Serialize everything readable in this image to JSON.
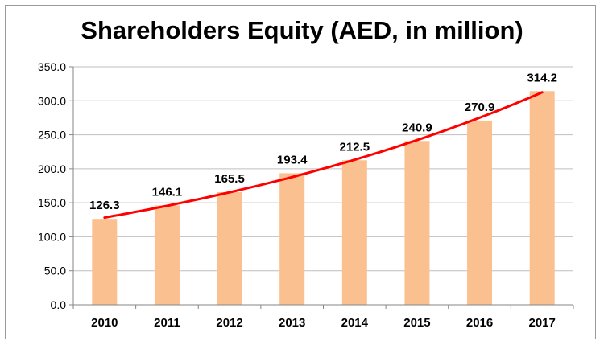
{
  "chart_data": {
    "type": "bar",
    "title": "Shareholders Equity (AED, in million)",
    "categories": [
      "2010",
      "2011",
      "2012",
      "2013",
      "2014",
      "2015",
      "2016",
      "2017"
    ],
    "values": [
      126.3,
      146.1,
      165.5,
      193.4,
      212.5,
      240.9,
      270.9,
      314.2
    ],
    "data_labels": [
      "126.3",
      "146.1",
      "165.5",
      "193.4",
      "212.5",
      "240.9",
      "270.9",
      "314.2"
    ],
    "y_ticks": [
      "0.0",
      "50.0",
      "100.0",
      "150.0",
      "200.0",
      "250.0",
      "300.0",
      "350.0"
    ],
    "ylim": [
      0,
      350
    ],
    "grid": true,
    "trendline": "exponential",
    "colors": {
      "bar": "#FAC090",
      "trend": "#FF0000",
      "grid": "#BFBFBF",
      "axis": "#868686"
    }
  }
}
